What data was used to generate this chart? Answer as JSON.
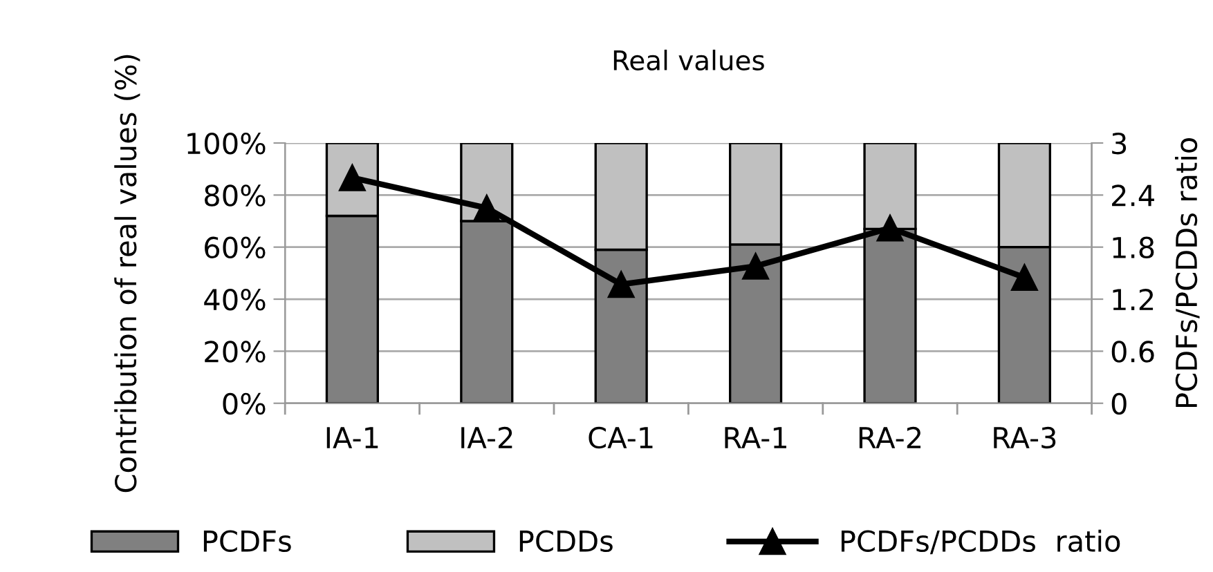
{
  "chart_data": {
    "type": "bar",
    "title": "Real values",
    "ylabel": "Contribution of real values (%)",
    "y2label": "PCDFs/PCDDs ratio",
    "categories": [
      "IA-1",
      "IA-2",
      "CA-1",
      "RA-1",
      "RA-2",
      "RA-3"
    ],
    "stacked": true,
    "series": [
      {
        "name": "PCDFs",
        "color": "#808080",
        "values": [
          72,
          70,
          59,
          61,
          67,
          60
        ]
      },
      {
        "name": "PCDDs",
        "color": "#c0c0c0",
        "values": [
          28,
          30,
          41,
          39,
          33,
          40
        ]
      },
      {
        "name": "PCDFs/PCDDs  ratio",
        "type": "line",
        "axis": "y2",
        "color": "#000000",
        "marker": "triangle",
        "values": [
          2.6,
          2.25,
          1.37,
          1.58,
          2.02,
          1.45
        ]
      }
    ],
    "ylim": [
      0,
      100
    ],
    "yticks": [
      {
        "value": 0,
        "label": "0%"
      },
      {
        "value": 20,
        "label": "20%"
      },
      {
        "value": 40,
        "label": "40%"
      },
      {
        "value": 60,
        "label": "60%"
      },
      {
        "value": 80,
        "label": "80%"
      },
      {
        "value": 100,
        "label": "100%"
      }
    ],
    "y2lim": [
      0,
      3
    ],
    "y2ticks": [
      0,
      0.6,
      1.2,
      1.8,
      2.4,
      3
    ],
    "grid": "y",
    "legend": "bottom"
  }
}
